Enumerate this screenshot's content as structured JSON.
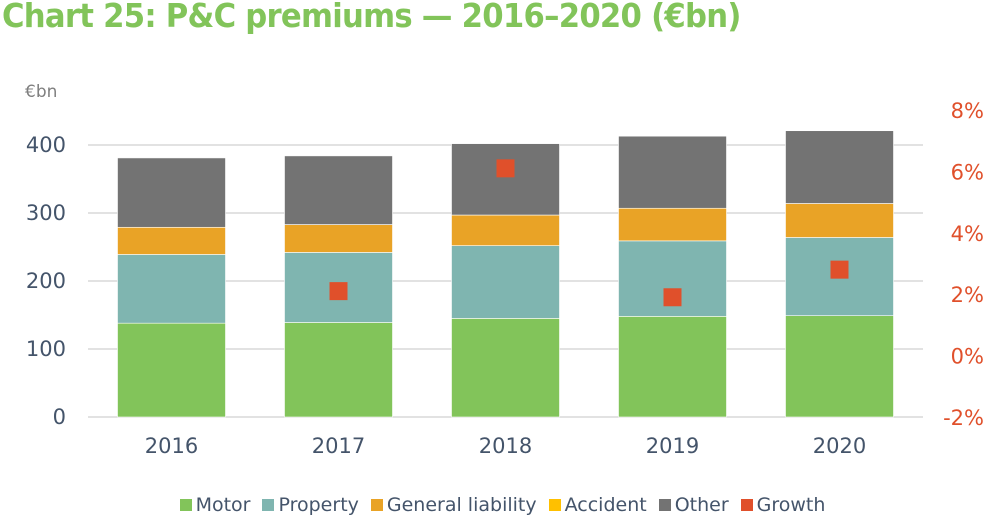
{
  "title": "Chart 25: P&C premiums — 2016–2020 (€bn)",
  "chart_data": {
    "type": "bar",
    "stacked": true,
    "title": "Chart 25: P&C premiums — 2016–2020 (€bn)",
    "categories": [
      "2016",
      "2017",
      "2018",
      "2019",
      "2020"
    ],
    "ylabel": "€bn",
    "ylim": [
      0,
      451
    ],
    "yticks": [
      "0",
      "100",
      "200",
      "300",
      "400"
    ],
    "ytick_values": [
      0,
      100,
      200,
      300,
      400
    ],
    "y2lim": [
      -2,
      8
    ],
    "y2ticks": [
      "-2%",
      "0%",
      "2%",
      "4%",
      "6%",
      "8%"
    ],
    "y2tick_values": [
      -2,
      0,
      2,
      4,
      6,
      8
    ],
    "grid": true,
    "legend_position": "bottom",
    "series": [
      {
        "name": "Motor",
        "color": "#82c45a",
        "values": [
          138,
          139,
          145,
          148,
          149
        ]
      },
      {
        "name": "Property",
        "color": "#7fb5b0",
        "values": [
          101,
          103,
          107,
          111,
          115
        ]
      },
      {
        "name": "General liability",
        "color": "#e9a326",
        "values": [
          40,
          41,
          45,
          48,
          50
        ]
      },
      {
        "name": "Accident",
        "color": "#ffc000",
        "values": [
          0,
          0,
          0,
          0,
          0
        ]
      },
      {
        "name": "Other",
        "color": "#737373",
        "values": [
          102,
          101,
          105,
          106,
          107
        ]
      }
    ],
    "growth": {
      "name": "Growth",
      "color": "#e0502b",
      "axis": "right",
      "type": "scatter",
      "values": [
        null,
        2.1,
        6.1,
        1.9,
        2.8
      ]
    }
  }
}
